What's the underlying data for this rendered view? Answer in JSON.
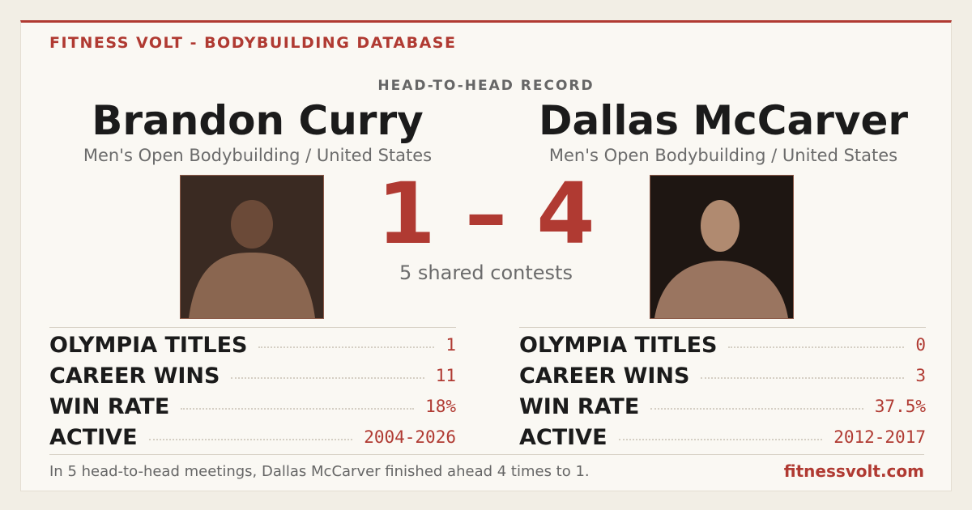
{
  "header": {
    "brand": "FITNESS VOLT - BODYBUILDING DATABASE",
    "title": "HEAD-TO-HEAD RECORD"
  },
  "athletes": [
    {
      "name": "Brandon Curry",
      "division": "Men's Open Bodybuilding / United States",
      "stats": [
        {
          "label": "OLYMPIA TITLES",
          "value": "1"
        },
        {
          "label": "CAREER WINS",
          "value": "11"
        },
        {
          "label": "WIN RATE",
          "value": "18%"
        },
        {
          "label": "ACTIVE",
          "value": "2004-2026"
        }
      ]
    },
    {
      "name": "Dallas McCarver",
      "division": "Men's Open Bodybuilding / United States",
      "stats": [
        {
          "label": "OLYMPIA TITLES",
          "value": "0"
        },
        {
          "label": "CAREER WINS",
          "value": "3"
        },
        {
          "label": "WIN RATE",
          "value": "37.5%"
        },
        {
          "label": "ACTIVE",
          "value": "2012-2017"
        }
      ]
    }
  ],
  "score": "1 – 4",
  "shared": "5 shared contests",
  "footer": {
    "summary": "In 5 head-to-head meetings, Dallas McCarver finished ahead 4 times to 1.",
    "site": "fitnessvolt.com"
  }
}
